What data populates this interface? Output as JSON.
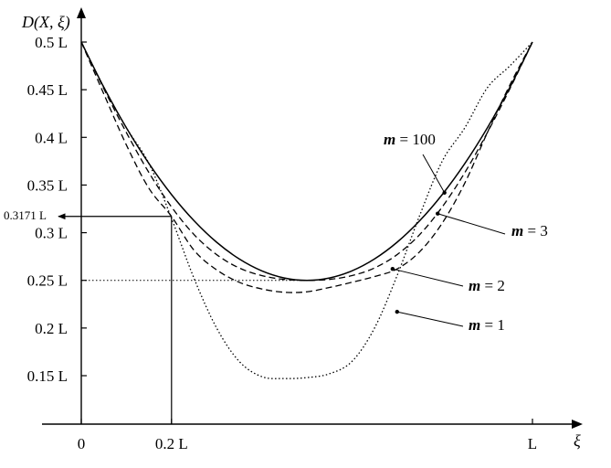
{
  "chart_data": {
    "type": "line",
    "ylabel": "D(X, ξ)",
    "xlabel": "ξ",
    "xlim": [
      0,
      1
    ],
    "ylim": [
      0.1,
      0.5
    ],
    "x_ticks": [
      {
        "value": 0,
        "label": "0"
      },
      {
        "value": 0.2,
        "label": "0.2 L"
      },
      {
        "value": 1,
        "label": "L"
      }
    ],
    "y_ticks": [
      {
        "value": 0.5,
        "label": "0.5  L"
      },
      {
        "value": 0.45,
        "label": "0.45  L"
      },
      {
        "value": 0.4,
        "label": "0.4  L"
      },
      {
        "value": 0.35,
        "label": "0.35  L"
      },
      {
        "value": 0.3,
        "label": "0.3  L"
      },
      {
        "value": 0.25,
        "label": "0.25  L"
      },
      {
        "value": 0.2,
        "label": "0.2  L"
      },
      {
        "value": 0.15,
        "label": "0.15  L"
      }
    ],
    "series": [
      {
        "name": "m = 100",
        "style": "solid",
        "x": [
          0,
          0.05,
          0.1,
          0.15,
          0.2,
          0.25,
          0.3,
          0.35,
          0.4,
          0.45,
          0.5,
          0.55,
          0.6,
          0.65,
          0.7,
          0.75,
          0.8,
          0.85,
          0.9,
          0.95,
          1.0
        ],
        "y": [
          0.5,
          0.4525,
          0.41,
          0.3725,
          0.34,
          0.3125,
          0.29,
          0.2725,
          0.26,
          0.2525,
          0.25,
          0.2525,
          0.26,
          0.2725,
          0.29,
          0.3125,
          0.34,
          0.3725,
          0.41,
          0.4525,
          0.5
        ]
      },
      {
        "name": "m = 3",
        "style": "dashed",
        "x": [
          0,
          0.05,
          0.1,
          0.15,
          0.2,
          0.25,
          0.3,
          0.35,
          0.4,
          0.45,
          0.5,
          0.55,
          0.6,
          0.65,
          0.7,
          0.75,
          0.8,
          0.85,
          0.9,
          0.95,
          1.0
        ],
        "y": [
          0.5,
          0.451,
          0.405,
          0.363,
          0.327,
          0.298,
          0.277,
          0.263,
          0.255,
          0.251,
          0.25,
          0.251,
          0.255,
          0.263,
          0.277,
          0.298,
          0.327,
          0.363,
          0.405,
          0.451,
          0.5
        ]
      },
      {
        "name": "m = 2",
        "style": "dashed",
        "x": [
          0,
          0.05,
          0.1,
          0.15,
          0.2,
          0.25,
          0.3,
          0.35,
          0.4,
          0.45,
          0.5,
          0.55,
          0.6,
          0.65,
          0.7,
          0.75,
          0.8,
          0.85,
          0.9,
          0.95,
          1.0
        ],
        "y": [
          0.5,
          0.4455,
          0.392,
          0.3465,
          0.3171,
          0.2815,
          0.261,
          0.248,
          0.241,
          0.2375,
          0.238,
          0.2425,
          0.248,
          0.254,
          0.262,
          0.28,
          0.31,
          0.352,
          0.405,
          0.455,
          0.5
        ]
      },
      {
        "name": "m = 1",
        "style": "dotted",
        "x": [
          0,
          0.05,
          0.1,
          0.15,
          0.2,
          0.25,
          0.3,
          0.35,
          0.4,
          0.45,
          0.5,
          0.55,
          0.6,
          0.65,
          0.7,
          0.75,
          0.8,
          0.85,
          0.9,
          0.95,
          1.0
        ],
        "y": [
          0.5,
          0.4525,
          0.41,
          0.3725,
          0.315,
          0.252,
          0.2,
          0.165,
          0.149,
          0.147,
          0.148,
          0.152,
          0.165,
          0.2,
          0.255,
          0.318,
          0.375,
          0.41,
          0.452,
          0.475,
          0.5
        ]
      }
    ],
    "annotations": [
      {
        "text": "m = 100",
        "series": "m = 100",
        "point": [
          0.805,
          0.342
        ]
      },
      {
        "text": "m = 3",
        "series": "m = 3",
        "point": [
          0.79,
          0.32
        ]
      },
      {
        "text": "m = 2",
        "series": "m = 2",
        "point": [
          0.69,
          0.262
        ]
      },
      {
        "text": "m = 1",
        "series": "m = 1",
        "point": [
          0.7,
          0.217
        ]
      },
      {
        "text": "0.3171 L",
        "point": [
          0.2,
          0.3171
        ]
      }
    ],
    "reference_lines": [
      {
        "orientation": "horizontal",
        "value": 0.25,
        "style": "dotted",
        "to_x": 0.5
      },
      {
        "orientation": "vertical",
        "value": 0.2,
        "style": "solid",
        "to_y": 0.3171
      }
    ],
    "grid": false,
    "legend": "none"
  }
}
